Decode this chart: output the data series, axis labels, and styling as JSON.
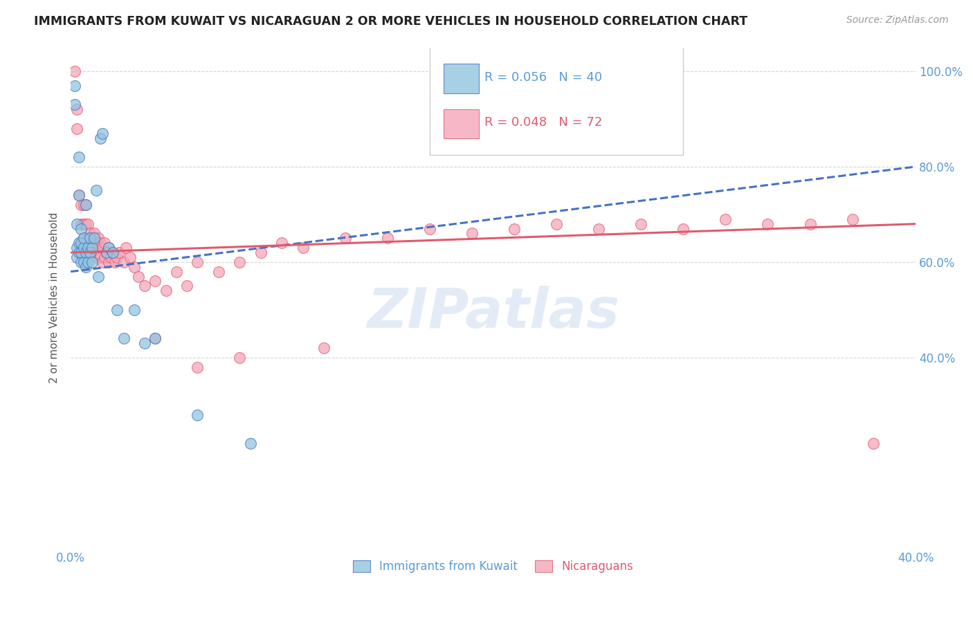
{
  "title": "IMMIGRANTS FROM KUWAIT VS NICARAGUAN 2 OR MORE VEHICLES IN HOUSEHOLD CORRELATION CHART",
  "source": "Source: ZipAtlas.com",
  "ylabel": "2 or more Vehicles in Household",
  "legend_bottom": [
    "Immigrants from Kuwait",
    "Nicaraguans"
  ],
  "kuwait_R": "R = 0.056",
  "kuwait_N": "N = 40",
  "nicaraguan_R": "R = 0.048",
  "nicaraguan_N": "N = 72",
  "xlim": [
    0.0,
    0.4
  ],
  "ylim": [
    0.0,
    1.05
  ],
  "yticks": [
    0.4,
    0.6,
    0.8,
    1.0
  ],
  "xtick_labels": [
    "0.0%",
    "40.0%"
  ],
  "xtick_positions": [
    0.0,
    0.4
  ],
  "ytick_labels": [
    "40.0%",
    "60.0%",
    "80.0%",
    "100.0%"
  ],
  "background_color": "#ffffff",
  "blue_color": "#92c5de",
  "pink_color": "#f4a7b9",
  "trend_blue": "#4472c4",
  "trend_pink": "#e05a6e",
  "axis_color": "#5b9bd5",
  "grid_color": "#d0d0d0",
  "kuwait_x": [
    0.002,
    0.002,
    0.003,
    0.003,
    0.003,
    0.004,
    0.004,
    0.004,
    0.004,
    0.005,
    0.005,
    0.005,
    0.005,
    0.006,
    0.006,
    0.006,
    0.007,
    0.007,
    0.007,
    0.008,
    0.008,
    0.009,
    0.009,
    0.01,
    0.01,
    0.011,
    0.012,
    0.013,
    0.014,
    0.015,
    0.017,
    0.018,
    0.02,
    0.022,
    0.025,
    0.03,
    0.035,
    0.04,
    0.06,
    0.085
  ],
  "kuwait_y": [
    0.93,
    0.97,
    0.61,
    0.63,
    0.68,
    0.62,
    0.64,
    0.74,
    0.82,
    0.6,
    0.62,
    0.64,
    0.67,
    0.6,
    0.63,
    0.65,
    0.59,
    0.62,
    0.72,
    0.6,
    0.63,
    0.62,
    0.65,
    0.6,
    0.63,
    0.65,
    0.75,
    0.57,
    0.86,
    0.87,
    0.62,
    0.63,
    0.62,
    0.5,
    0.44,
    0.5,
    0.43,
    0.44,
    0.28,
    0.22
  ],
  "nicaraguan_x": [
    0.002,
    0.003,
    0.003,
    0.004,
    0.005,
    0.005,
    0.006,
    0.006,
    0.006,
    0.007,
    0.007,
    0.008,
    0.008,
    0.008,
    0.009,
    0.009,
    0.01,
    0.01,
    0.011,
    0.011,
    0.012,
    0.012,
    0.013,
    0.013,
    0.014,
    0.014,
    0.015,
    0.015,
    0.016,
    0.016,
    0.017,
    0.018,
    0.018,
    0.019,
    0.02,
    0.021,
    0.022,
    0.023,
    0.025,
    0.026,
    0.028,
    0.03,
    0.032,
    0.035,
    0.04,
    0.045,
    0.05,
    0.055,
    0.06,
    0.07,
    0.08,
    0.09,
    0.1,
    0.11,
    0.13,
    0.15,
    0.17,
    0.19,
    0.21,
    0.23,
    0.25,
    0.27,
    0.29,
    0.31,
    0.33,
    0.35,
    0.37,
    0.04,
    0.06,
    0.08,
    0.12,
    0.38
  ],
  "nicaraguan_y": [
    1.0,
    0.88,
    0.92,
    0.74,
    0.68,
    0.72,
    0.65,
    0.68,
    0.72,
    0.68,
    0.72,
    0.62,
    0.65,
    0.68,
    0.63,
    0.66,
    0.62,
    0.65,
    0.63,
    0.66,
    0.61,
    0.64,
    0.62,
    0.65,
    0.61,
    0.64,
    0.6,
    0.63,
    0.61,
    0.64,
    0.62,
    0.6,
    0.63,
    0.61,
    0.62,
    0.6,
    0.61,
    0.62,
    0.6,
    0.63,
    0.61,
    0.59,
    0.57,
    0.55,
    0.56,
    0.54,
    0.58,
    0.55,
    0.6,
    0.58,
    0.6,
    0.62,
    0.64,
    0.63,
    0.65,
    0.65,
    0.67,
    0.66,
    0.67,
    0.68,
    0.67,
    0.68,
    0.67,
    0.69,
    0.68,
    0.68,
    0.69,
    0.44,
    0.38,
    0.4,
    0.42,
    0.22
  ]
}
